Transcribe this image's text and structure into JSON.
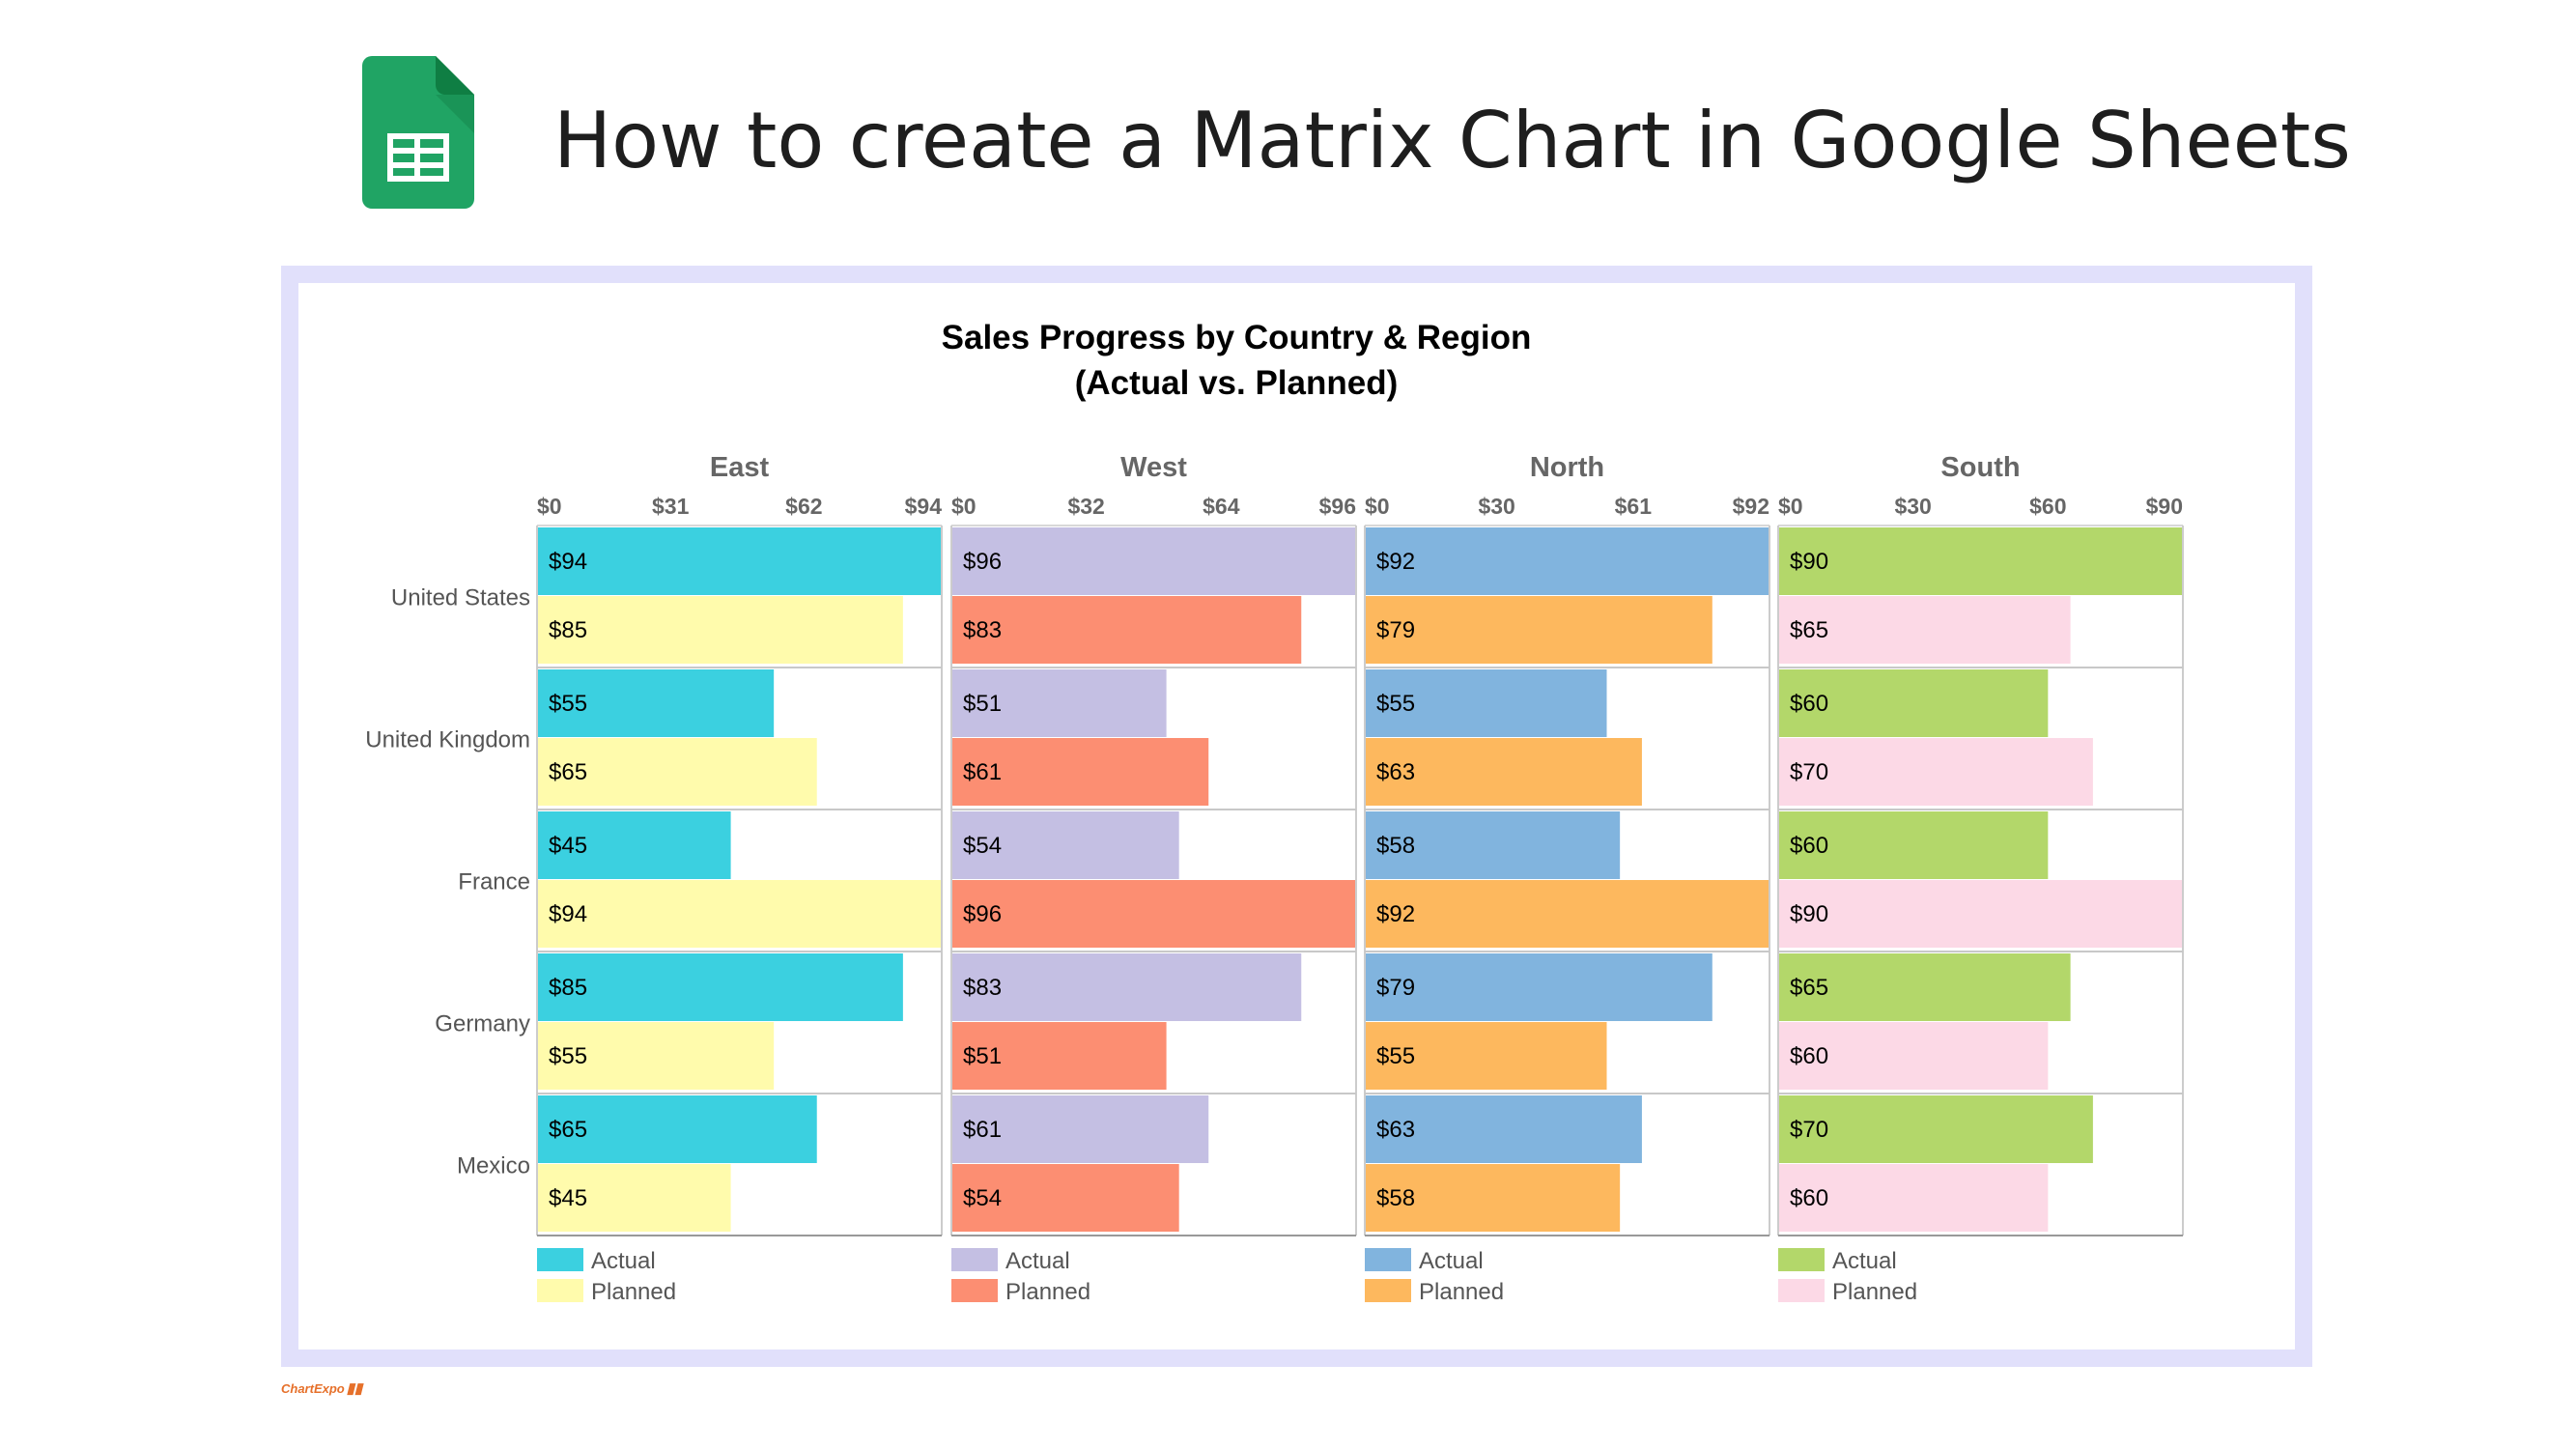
{
  "page": {
    "title": "How to create a Matrix Chart in Google Sheets",
    "logo_icon": "google-sheets-icon",
    "brand": "ChartExpo",
    "brand_icon": "chart-bars-icon"
  },
  "chart_data": {
    "type": "bar",
    "orientation": "horizontal",
    "title": "Sales Progress by Country & Region",
    "subtitle": "(Actual vs. Planned)",
    "categories": [
      "United States",
      "United Kingdom",
      "France",
      "Germany",
      "Mexico"
    ],
    "panels": [
      {
        "region": "East",
        "xlim": [
          0,
          94
        ],
        "ticks": [
          "$0",
          "$31",
          "$62",
          "$94"
        ],
        "tick_values": [
          0,
          31,
          62,
          94
        ],
        "series": [
          {
            "name": "Actual",
            "color": "#3bd0e0",
            "values": [
              94,
              55,
              45,
              85,
              65
            ],
            "labels": [
              "$94",
              "$55",
              "$45",
              "$85",
              "$65"
            ]
          },
          {
            "name": "Planned",
            "color": "#fffbac",
            "values": [
              85,
              65,
              94,
              55,
              45
            ],
            "labels": [
              "$85",
              "$65",
              "$94",
              "$55",
              "$45"
            ]
          }
        ]
      },
      {
        "region": "West",
        "xlim": [
          0,
          96
        ],
        "ticks": [
          "$0",
          "$32",
          "$64",
          "$96"
        ],
        "tick_values": [
          0,
          32,
          64,
          96
        ],
        "series": [
          {
            "name": "Actual",
            "color": "#c4bfe3",
            "values": [
              96,
              51,
              54,
              83,
              61
            ],
            "labels": [
              "$96",
              "$51",
              "$54",
              "$83",
              "$61"
            ]
          },
          {
            "name": "Planned",
            "color": "#fc8e72",
            "values": [
              83,
              61,
              96,
              51,
              54
            ],
            "labels": [
              "$83",
              "$61",
              "$96",
              "$51",
              "$54"
            ]
          }
        ]
      },
      {
        "region": "North",
        "xlim": [
          0,
          92
        ],
        "ticks": [
          "$0",
          "$30",
          "$61",
          "$92"
        ],
        "tick_values": [
          0,
          30,
          61,
          92
        ],
        "series": [
          {
            "name": "Actual",
            "color": "#81b4de",
            "values": [
              92,
              55,
              58,
              79,
              63
            ],
            "labels": [
              "$92",
              "$55",
              "$58",
              "$79",
              "$63"
            ]
          },
          {
            "name": "Planned",
            "color": "#fdb85e",
            "values": [
              79,
              63,
              92,
              55,
              58
            ],
            "labels": [
              "$79",
              "$63",
              "$92",
              "$55",
              "$58"
            ]
          }
        ]
      },
      {
        "region": "South",
        "xlim": [
          0,
          90
        ],
        "ticks": [
          "$0",
          "$30",
          "$60",
          "$90"
        ],
        "tick_values": [
          0,
          30,
          60,
          90
        ],
        "series": [
          {
            "name": "Actual",
            "color": "#b3d76a",
            "values": [
              90,
              60,
              60,
              65,
              70
            ],
            "labels": [
              "$90",
              "$60",
              "$60",
              "$65",
              "$70"
            ]
          },
          {
            "name": "Planned",
            "color": "#fcd9e6",
            "values": [
              65,
              70,
              90,
              60,
              60
            ],
            "labels": [
              "$65",
              "$70",
              "$90",
              "$60",
              "$60"
            ]
          }
        ]
      }
    ],
    "legend": "bottom",
    "grid": true
  }
}
